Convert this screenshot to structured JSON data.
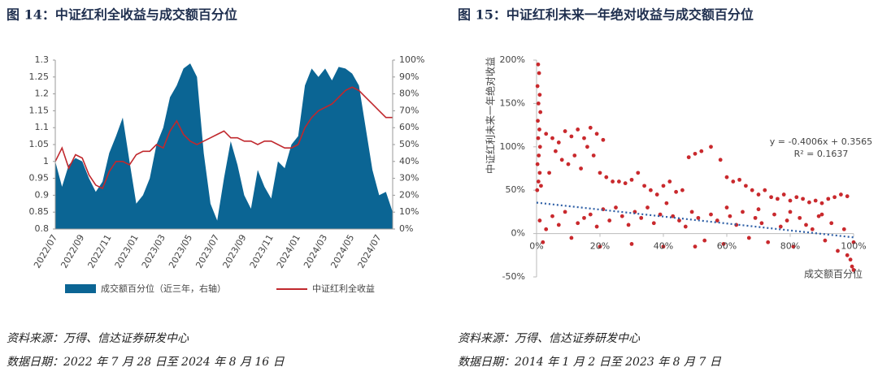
{
  "chart_data": [
    {
      "type": "combo",
      "title": "图 14：中证红利全收益与成交额百分位",
      "categories": [
        "2022/07",
        null,
        null,
        null,
        "2022/09",
        null,
        null,
        null,
        "2022/11",
        null,
        null,
        null,
        "2023/01",
        null,
        null,
        null,
        "2023/03",
        null,
        null,
        null,
        "2023/05",
        null,
        null,
        null,
        "2023/07",
        null,
        null,
        null,
        "2023/09",
        null,
        null,
        null,
        "2023/11",
        null,
        null,
        null,
        "2024/01",
        null,
        null,
        null,
        "2024/03",
        null,
        null,
        null,
        "2024/05",
        null,
        null,
        null,
        "2024/07",
        null,
        null
      ],
      "series": [
        {
          "name": "成交额百分位（近三年，右轴）",
          "color": "#0b6594",
          "type": "area",
          "axis": "y2",
          "values": [
            40,
            25,
            38,
            42,
            40,
            30,
            22,
            28,
            45,
            55,
            66,
            40,
            15,
            20,
            30,
            50,
            60,
            78,
            85,
            95,
            98,
            90,
            45,
            15,
            5,
            30,
            52,
            38,
            20,
            12,
            35,
            25,
            18,
            40,
            36,
            50,
            55,
            85,
            95,
            90,
            95,
            88,
            96,
            95,
            92,
            85,
            60,
            35,
            20,
            22,
            10
          ]
        },
        {
          "name": "中证红利全收益",
          "color": "#c0282d",
          "type": "line",
          "values": [
            1.0,
            1.04,
            0.98,
            1.02,
            1.01,
            0.96,
            0.93,
            0.92,
            0.97,
            1.0,
            1.0,
            0.99,
            1.02,
            1.03,
            1.03,
            1.05,
            1.04,
            1.09,
            1.12,
            1.08,
            1.06,
            1.05,
            1.06,
            1.07,
            1.08,
            1.09,
            1.07,
            1.07,
            1.06,
            1.06,
            1.05,
            1.06,
            1.06,
            1.05,
            1.04,
            1.04,
            1.05,
            1.1,
            1.13,
            1.15,
            1.16,
            1.17,
            1.19,
            1.21,
            1.22,
            1.21,
            1.19,
            1.17,
            1.15,
            1.13,
            1.13
          ]
        }
      ],
      "ylim": [
        0.8,
        1.3
      ],
      "yticks": [
        0.8,
        0.85,
        0.9,
        0.95,
        1,
        1.05,
        1.1,
        1.15,
        1.2,
        1.25,
        1.3
      ],
      "y2lim": [
        0,
        100
      ],
      "y2ticks": [
        {
          "value": 0,
          "label": "0%"
        },
        {
          "value": 10,
          "label": "10%"
        },
        {
          "value": 20,
          "label": "20%"
        },
        {
          "value": 30,
          "label": "30%"
        },
        {
          "value": 40,
          "label": "40%"
        },
        {
          "value": 50,
          "label": "50%"
        },
        {
          "value": 60,
          "label": "60%"
        },
        {
          "value": 70,
          "label": "70%"
        },
        {
          "value": 80,
          "label": "80%"
        },
        {
          "value": 90,
          "label": "90%"
        },
        {
          "value": 100,
          "label": "100%"
        }
      ],
      "legend": "bottom",
      "notes": [
        "资料来源：万得、信达证券研发中心",
        "数据日期：2022 年 7 月 28 日至 2024 年 8 月 16 日"
      ]
    },
    {
      "type": "scatter",
      "title": "图 15：中证红利未来一年绝对收益与成交额百分位",
      "x_label": "成交额百分位",
      "y_label": "中证红利未来一年绝对收益",
      "color": "#c9292d",
      "x": [
        0.5,
        0.8,
        0.3,
        1,
        0.6,
        1.2,
        0.4,
        0.9,
        0.5,
        1.1,
        0.7,
        0.3,
        1,
        0.6,
        1.4,
        0.2,
        3,
        5,
        7,
        9,
        11,
        13,
        15,
        17,
        19,
        21,
        6,
        8,
        10,
        12,
        14,
        16,
        18,
        20,
        22,
        24,
        4,
        26,
        28,
        30,
        32,
        34,
        36,
        38,
        40,
        42,
        44,
        46,
        48,
        50,
        52,
        55,
        58,
        60,
        62,
        64,
        66,
        68,
        70,
        72,
        74,
        76,
        78,
        80,
        82,
        84,
        86,
        88,
        90,
        92,
        94,
        96,
        98,
        1,
        3,
        5,
        7,
        9,
        11,
        13,
        15,
        17,
        19,
        21,
        23,
        25,
        27,
        29,
        31,
        33,
        35,
        37,
        39,
        41,
        43,
        45,
        47,
        49,
        51,
        53,
        55,
        57,
        59,
        61,
        63,
        65,
        67,
        69,
        71,
        73,
        75,
        77,
        79,
        81,
        83,
        85,
        87,
        89,
        91,
        93,
        95,
        97,
        98,
        99,
        99.5,
        100,
        100,
        2,
        20,
        30,
        40,
        50,
        60,
        70,
        80,
        90
      ],
      "values": [
        195,
        185,
        170,
        160,
        150,
        140,
        130,
        120,
        110,
        100,
        90,
        80,
        70,
        60,
        55,
        50,
        115,
        110,
        105,
        118,
        112,
        120,
        110,
        122,
        115,
        108,
        95,
        85,
        80,
        90,
        75,
        100,
        90,
        70,
        65,
        60,
        70,
        60,
        58,
        62,
        70,
        55,
        50,
        45,
        55,
        60,
        48,
        50,
        88,
        92,
        95,
        100,
        85,
        65,
        60,
        62,
        55,
        50,
        45,
        50,
        42,
        40,
        45,
        38,
        42,
        40,
        36,
        38,
        35,
        40,
        42,
        45,
        43,
        15,
        5,
        20,
        10,
        25,
        -5,
        12,
        18,
        22,
        8,
        28,
        15,
        30,
        20,
        10,
        25,
        18,
        30,
        12,
        22,
        35,
        20,
        15,
        8,
        25,
        18,
        -8,
        22,
        15,
        -12,
        20,
        10,
        25,
        -5,
        18,
        12,
        -10,
        22,
        8,
        15,
        -15,
        18,
        10,
        5,
        20,
        -8,
        12,
        -20,
        5,
        -25,
        -30,
        -38,
        -42,
        -10,
        -10,
        -15,
        -12,
        -15,
        -15,
        30,
        28,
        25,
        22
      ],
      "xlim": [
        0,
        100
      ],
      "xticks": [
        {
          "value": 0,
          "label": "0%"
        },
        {
          "value": 20,
          "label": "20%"
        },
        {
          "value": 40,
          "label": "40%"
        },
        {
          "value": 60,
          "label": "60%"
        },
        {
          "value": 80,
          "label": "80%"
        },
        {
          "value": 100,
          "label": "100%"
        }
      ],
      "ylim": [
        -50,
        200
      ],
      "yticks": [
        {
          "value": -50,
          "label": "-50%"
        },
        {
          "value": 0,
          "label": "0%"
        },
        {
          "value": 50,
          "label": "50%"
        },
        {
          "value": 100,
          "label": "100%"
        },
        {
          "value": 150,
          "label": "150%"
        },
        {
          "value": 200,
          "label": "200%"
        }
      ],
      "trendline": {
        "slope": -0.4006,
        "intercept": 0.3565,
        "color": "#2e5fa6"
      },
      "annotations": [
        "y = -0.4006x + 0.3565",
        "R² = 0.1637"
      ],
      "notes": [
        "资料来源：万得、信达证券研发中心",
        "数据日期：2014 年 1 月 2 日至 2023 年 8 月 7 日"
      ]
    }
  ]
}
